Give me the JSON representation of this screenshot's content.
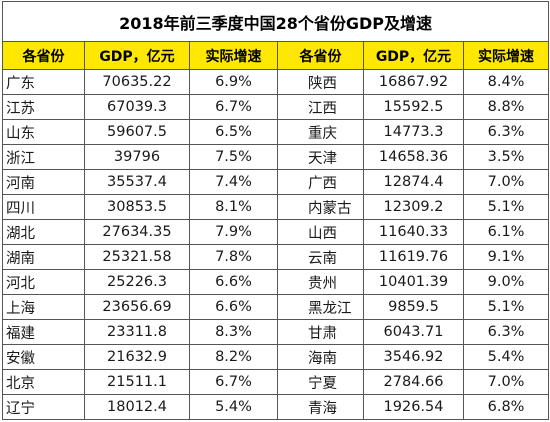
{
  "title": "2018年前三季度中国28个省份GDP及增速",
  "headers": [
    "各省份",
    "GDP，亿元",
    "实际增速",
    "各省份",
    "GDP，亿元",
    "实际增速"
  ],
  "rows": [
    [
      "广东",
      "70635.22",
      "6.9%",
      "陕西",
      "16867.92",
      "8.4%"
    ],
    [
      "江苏",
      "67039.3",
      "6.7%",
      "江西",
      "15592.5",
      "8.8%"
    ],
    [
      "山东",
      "59607.5",
      "6.5%",
      "重庆",
      "14773.3",
      "6.3%"
    ],
    [
      "浙江",
      "39796",
      "7.5%",
      "天津",
      "14658.36",
      "3.5%"
    ],
    [
      "河南",
      "35537.4",
      "7.4%",
      "广西",
      "12874.4",
      "7.0%"
    ],
    [
      "四川",
      "30853.5",
      "8.1%",
      "内蒙古",
      "12309.2",
      "5.1%"
    ],
    [
      "湖北",
      "27634.35",
      "7.9%",
      "山西",
      "11640.33",
      "6.1%"
    ],
    [
      "湖南",
      "25321.58",
      "7.8%",
      "云南",
      "11619.76",
      "9.1%"
    ],
    [
      "河北",
      "25226.3",
      "6.6%",
      "贵州",
      "10401.39",
      "9.0%"
    ],
    [
      "上海",
      "23656.69",
      "6.6%",
      "黑龙江",
      "9859.5",
      "5.1%"
    ],
    [
      "福建",
      "23311.8",
      "8.3%",
      "甘肃",
      "6043.71",
      "6.3%"
    ],
    [
      "安徽",
      "21632.9",
      "8.2%",
      "海南",
      "3546.92",
      "5.4%"
    ],
    [
      "北京",
      "21511.1",
      "6.7%",
      "宁夏",
      "2784.66",
      "7.0%"
    ],
    [
      "辽宁",
      "18012.4",
      "5.4%",
      "青海",
      "1926.54",
      "6.8%"
    ]
  ],
  "colors": {
    "header_bg": "#ffe800",
    "border": "#555555"
  }
}
